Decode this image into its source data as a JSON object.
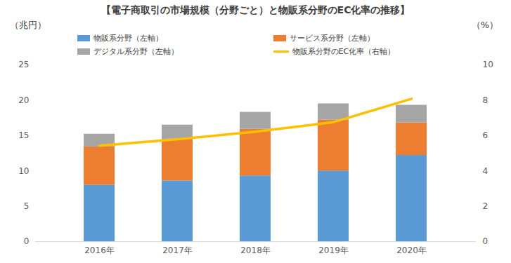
{
  "chart_data": {
    "type": "bar",
    "title": "【電子商取引の市場規模（分野ごと）と物販系分野のEC化率の推移】",
    "ylabel": "（兆円）",
    "y2label": "（%）",
    "categories": [
      "2016年",
      "2017年",
      "2018年",
      "2019年",
      "2020年"
    ],
    "stacked": true,
    "grid": false,
    "legend": "top",
    "ylim": [
      0,
      25
    ],
    "yticks": [
      0,
      5,
      10,
      15,
      20,
      25
    ],
    "y2lim": [
      0,
      10
    ],
    "y2ticks": [
      0,
      2,
      4,
      6,
      8,
      10
    ],
    "series": [
      {
        "name": "物販系分野（左軸）",
        "type": "bar",
        "color": "#5b9bd5",
        "values": [
          8.0,
          8.6,
          9.3,
          10.0,
          12.2
        ]
      },
      {
        "name": "サービス系分野（左軸）",
        "type": "bar",
        "color": "#ed7d31",
        "values": [
          5.4,
          5.9,
          6.6,
          7.2,
          4.6
        ]
      },
      {
        "name": "デジタル系分野（左軸）",
        "type": "bar",
        "color": "#a5a5a5",
        "values": [
          1.8,
          2.0,
          2.4,
          2.3,
          2.5
        ]
      },
      {
        "name": "物販系分野のEC化率（右軸）",
        "type": "line",
        "axis": "y2",
        "color": "#ffc000",
        "values": [
          5.43,
          5.79,
          6.22,
          6.76,
          8.08
        ]
      }
    ]
  }
}
